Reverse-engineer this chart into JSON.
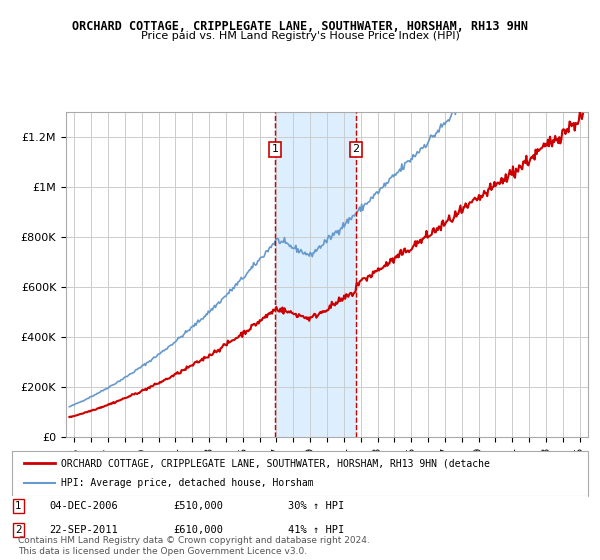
{
  "title1": "ORCHARD COTTAGE, CRIPPLEGATE LANE, SOUTHWATER, HORSHAM, RH13 9HN",
  "title2": "Price paid vs. HM Land Registry's House Price Index (HPI)",
  "ylabel": "",
  "background_color": "#ffffff",
  "plot_bg_color": "#ffffff",
  "grid_color": "#cccccc",
  "red_color": "#cc0000",
  "blue_color": "#6699cc",
  "highlight_color": "#ddeeff",
  "transaction1": {
    "date_num": 2006.92,
    "price": 510000,
    "label": "1",
    "date_str": "04-DEC-2006",
    "pct": "30%"
  },
  "transaction2": {
    "date_num": 2011.73,
    "price": 610000,
    "label": "2",
    "date_str": "22-SEP-2011",
    "pct": "41%"
  },
  "xmin": 1994.5,
  "xmax": 2025.5,
  "ymin": 0,
  "ymax": 1300000,
  "yticks": [
    0,
    200000,
    400000,
    600000,
    800000,
    1000000,
    1200000
  ],
  "ytick_labels": [
    "£0",
    "£200K",
    "£400K",
    "£600K",
    "£800K",
    "£1M",
    "£1.2M"
  ],
  "legend_line1": "ORCHARD COTTAGE, CRIPPLEGATE LANE, SOUTHWATER, HORSHAM, RH13 9HN (detache",
  "legend_line2": "HPI: Average price, detached house, Horsham",
  "footer1": "Contains HM Land Registry data © Crown copyright and database right 2024.",
  "footer2": "This data is licensed under the Open Government Licence v3.0."
}
